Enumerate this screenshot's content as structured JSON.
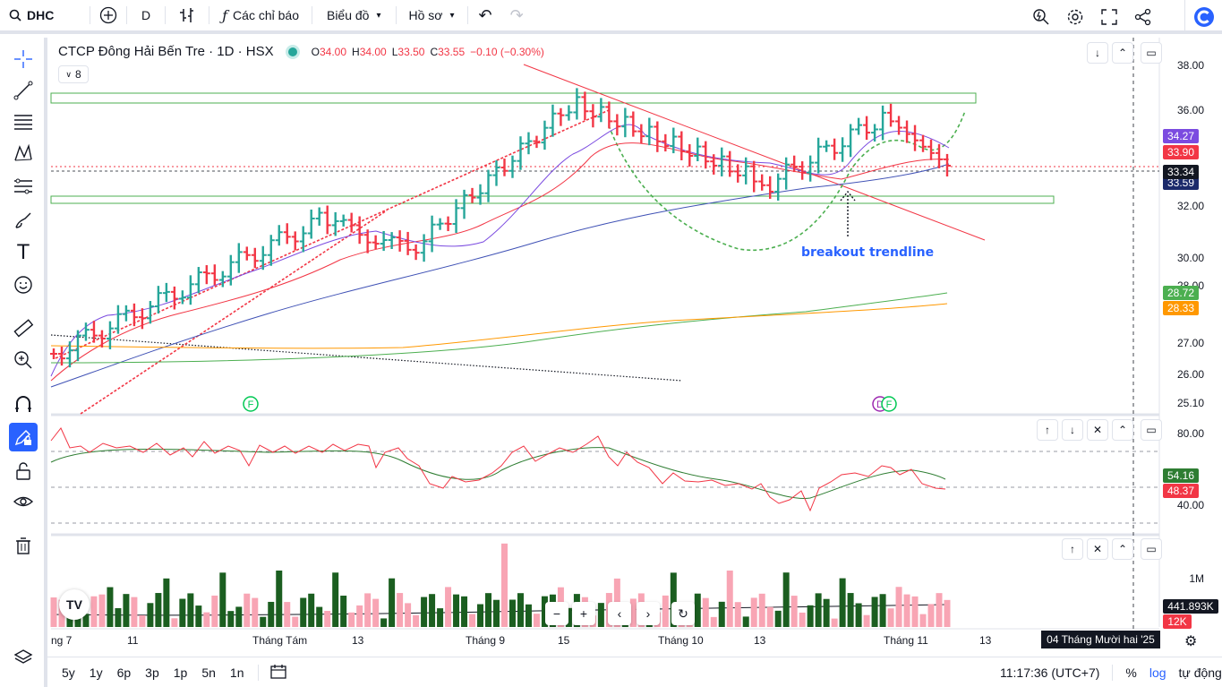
{
  "topbar": {
    "symbol": "DHC",
    "interval": "D",
    "indicators_label": "Các chỉ báo",
    "chart_type_label": "Biểu đồ",
    "profile_label": "Hồ sơ"
  },
  "legend": {
    "title": "CTCP Đông Hải Bến Tre · 1D · HSX",
    "open_label": "O",
    "open": "34.00",
    "high_label": "H",
    "high": "34.00",
    "low_label": "L",
    "low": "33.50",
    "close_label": "C",
    "close": "33.55",
    "change": "−0.10 (−0.30%)",
    "collapsed_count": "8"
  },
  "annotation": "breakout trendline",
  "price_axis": [
    "38.00",
    "36.00",
    "32.00",
    "30.00",
    "28.00",
    "27.00",
    "26.00",
    "25.10"
  ],
  "price_tags": {
    "ma_purple": "34.27",
    "last_red": "33.90",
    "crosshair": "33.34",
    "ma_navy": "33.59",
    "ma_green": "28.72",
    "ma_orange": "28.33"
  },
  "rsi_axis": [
    "80.00",
    "40.00"
  ],
  "rsi_tags": {
    "signal": "54.16",
    "rsi": "48.37"
  },
  "volume_axis": [
    "1M"
  ],
  "volume_tags": {
    "ma": "441.893K",
    "volume": "12K"
  },
  "time_axis": [
    "ng 7",
    "11",
    "Tháng Tám",
    "13",
    "Tháng 9",
    "15",
    "Tháng 10",
    "13",
    "Tháng 11",
    "13"
  ],
  "crosshair_date": "04 Tháng Mười hai '25",
  "bottombar": {
    "ranges": [
      "5y",
      "1y",
      "6p",
      "3p",
      "1p",
      "5n",
      "1n"
    ],
    "clock": "11:17:36 (UTC+7)",
    "percent": "%",
    "log": "log",
    "auto": "tự động"
  },
  "markers": [
    "F",
    "D",
    "F"
  ],
  "colors": {
    "up": "#26a69a",
    "down": "#f23645",
    "accent": "#2962ff",
    "ma_purple": "#7b4be0",
    "ma_navy": "#1b2a6b",
    "ma_green": "#4caf50",
    "ma_orange": "#ff9800"
  }
}
